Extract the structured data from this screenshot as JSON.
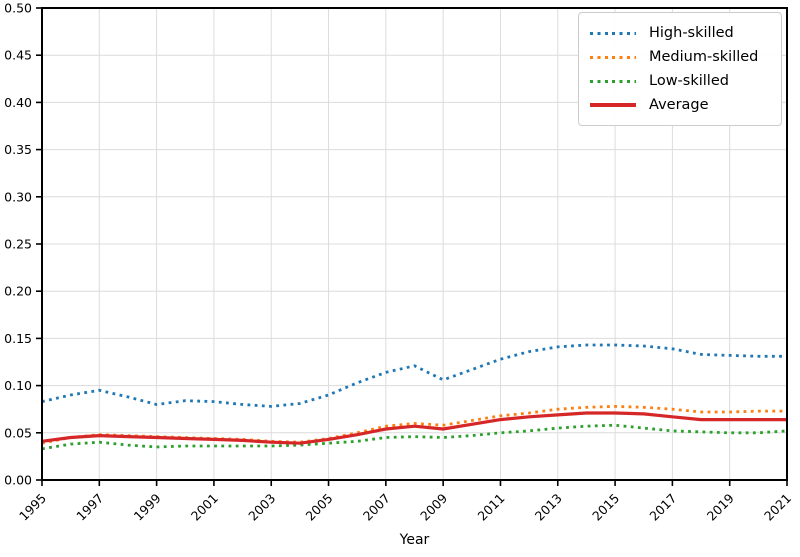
{
  "figure": {
    "background_color": "#ffffff",
    "text_color": "#000000",
    "spine_color": "#000000"
  },
  "chart_data": {
    "type": "line",
    "title": "",
    "xlabel": "Year",
    "ylabel": "",
    "grid": true,
    "grid_color": "#dcdcdc",
    "legend_position": "upper right",
    "ylim": [
      0.0,
      0.5
    ],
    "xlim": [
      1995,
      2021
    ],
    "x": [
      1995,
      1996,
      1997,
      1998,
      1999,
      2000,
      2001,
      2002,
      2003,
      2004,
      2005,
      2006,
      2007,
      2008,
      2009,
      2010,
      2011,
      2012,
      2013,
      2014,
      2015,
      2016,
      2017,
      2018,
      2019,
      2020,
      2021
    ],
    "xtick_values": [
      1995,
      1997,
      1999,
      2001,
      2003,
      2005,
      2007,
      2009,
      2011,
      2013,
      2015,
      2017,
      2019,
      2021
    ],
    "xtick_labels": [
      "1995",
      "1997",
      "1999",
      "2001",
      "2003",
      "2005",
      "2007",
      "2009",
      "2011",
      "2013",
      "2015",
      "2017",
      "2019",
      "2021"
    ],
    "ytick_values": [
      0.0,
      0.05,
      0.1,
      0.15,
      0.2,
      0.25,
      0.3,
      0.35,
      0.4,
      0.45,
      0.5
    ],
    "ytick_labels": [
      "0.00",
      "0.05",
      "0.10",
      "0.15",
      "0.20",
      "0.25",
      "0.30",
      "0.35",
      "0.40",
      "0.45",
      "0.50"
    ],
    "series": [
      {
        "name": "High-skilled",
        "color": "#1f77b4",
        "style": "dotted",
        "values": [
          0.083,
          0.09,
          0.095,
          0.088,
          0.08,
          0.084,
          0.083,
          0.08,
          0.078,
          0.081,
          0.09,
          0.103,
          0.114,
          0.121,
          0.106,
          0.117,
          0.128,
          0.136,
          0.141,
          0.143,
          0.143,
          0.142,
          0.139,
          0.133,
          0.132,
          0.131,
          0.131
        ]
      },
      {
        "name": "Medium-skilled",
        "color": "#ff7f0e",
        "style": "dotted",
        "values": [
          0.039,
          0.045,
          0.048,
          0.047,
          0.046,
          0.045,
          0.044,
          0.043,
          0.041,
          0.04,
          0.044,
          0.05,
          0.057,
          0.06,
          0.058,
          0.063,
          0.068,
          0.071,
          0.075,
          0.077,
          0.078,
          0.077,
          0.075,
          0.072,
          0.072,
          0.073,
          0.073
        ]
      },
      {
        "name": "Low-skilled",
        "color": "#2ca02c",
        "style": "dotted",
        "values": [
          0.033,
          0.038,
          0.04,
          0.037,
          0.035,
          0.036,
          0.036,
          0.036,
          0.036,
          0.037,
          0.039,
          0.041,
          0.045,
          0.046,
          0.045,
          0.047,
          0.05,
          0.052,
          0.055,
          0.057,
          0.058,
          0.055,
          0.052,
          0.051,
          0.05,
          0.05,
          0.052
        ]
      },
      {
        "name": "Average",
        "color": "#d62728",
        "style": "solid",
        "values": [
          0.041,
          0.045,
          0.047,
          0.046,
          0.045,
          0.044,
          0.043,
          0.042,
          0.04,
          0.039,
          0.043,
          0.048,
          0.054,
          0.057,
          0.054,
          0.059,
          0.064,
          0.067,
          0.069,
          0.071,
          0.071,
          0.07,
          0.067,
          0.064,
          0.064,
          0.064,
          0.064
        ]
      }
    ]
  }
}
